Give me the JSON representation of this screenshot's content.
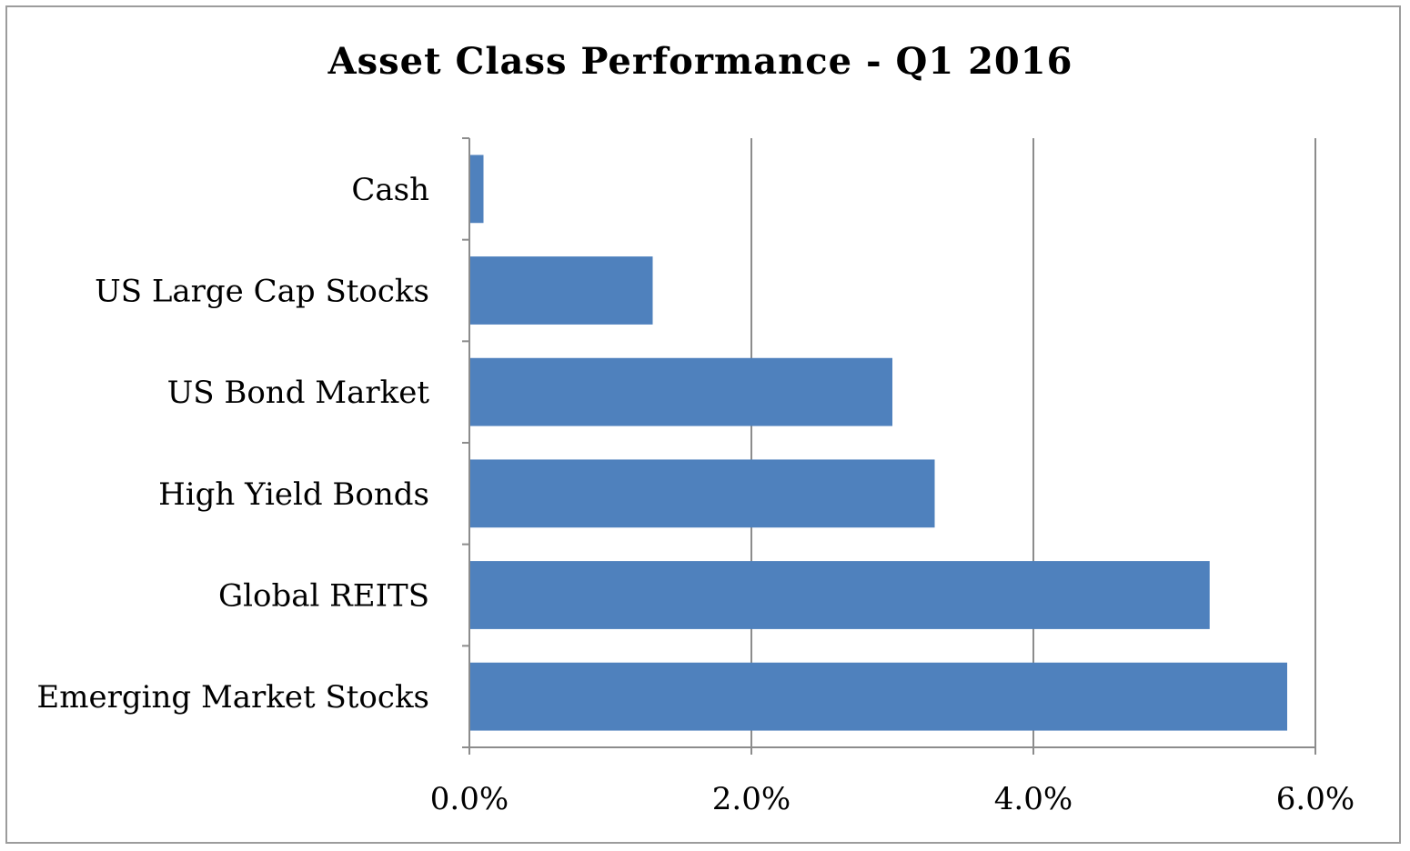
{
  "chart_data": {
    "type": "bar",
    "orientation": "horizontal",
    "title": "Asset Class Performance  - Q1 2016",
    "xlabel": "",
    "ylabel": "",
    "categories": [
      "Cash",
      "US Large  Cap  Stocks",
      "US Bond Market",
      "High Yield  Bonds",
      "Global REITS",
      "Emerging Market  Stocks"
    ],
    "values": [
      0.1,
      1.3,
      3.0,
      3.3,
      5.25,
      5.8
    ],
    "xlim": [
      0,
      6
    ],
    "x_ticks": [
      0,
      2,
      4,
      6
    ],
    "x_tick_labels": [
      "0.0%",
      "2.0%",
      "4.0%",
      "6.0%"
    ],
    "grid": "vertical",
    "legend": "none",
    "bar_color": "#4f81bd",
    "grid_color": "#8c8c8c"
  }
}
